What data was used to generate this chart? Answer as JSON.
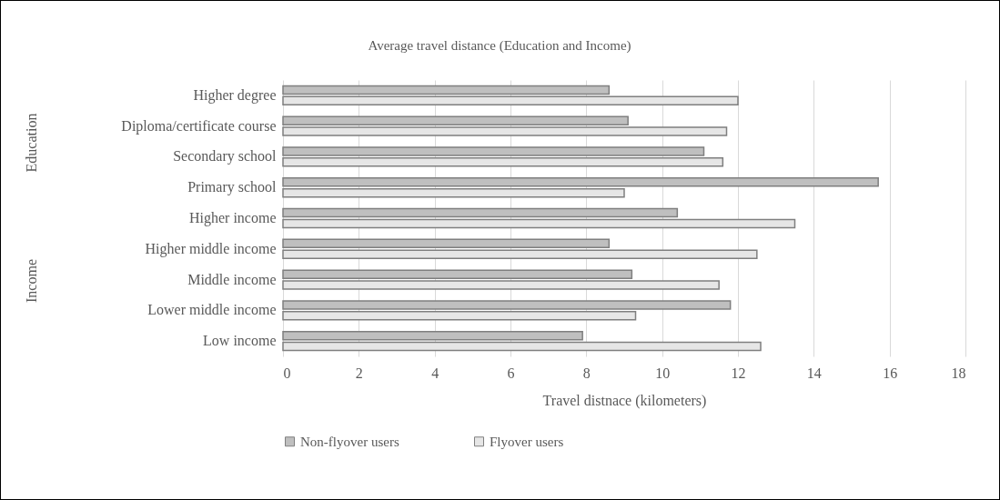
{
  "chart_data": {
    "type": "bar",
    "orientation": "horizontal",
    "title": "Average travel distance (Education and Income)",
    "xlabel": "Travel distnace (kilometers)",
    "categories": [
      "Higher degree",
      "Diploma/certificate course",
      "Secondary school",
      "Primary school",
      "Higher income",
      "Higher middle income",
      "Middle income",
      "Lower middle income",
      "Low income"
    ],
    "series": [
      {
        "name": "Non-flyover users",
        "color": "#bfbfbf",
        "values": [
          8.6,
          9.1,
          11.1,
          15.7,
          10.4,
          8.6,
          9.2,
          11.8,
          7.9
        ]
      },
      {
        "name": "Flyover users",
        "color": "#e6e6e6",
        "values": [
          12.0,
          11.7,
          11.6,
          9.0,
          13.5,
          12.5,
          11.5,
          9.3,
          12.6
        ]
      }
    ],
    "xlim": [
      0,
      18
    ],
    "xticks": [
      0,
      2,
      4,
      6,
      8,
      10,
      12,
      14,
      16,
      18
    ],
    "grid": "x",
    "legend": "bottom",
    "annotations": [
      "Education",
      "Income"
    ]
  }
}
